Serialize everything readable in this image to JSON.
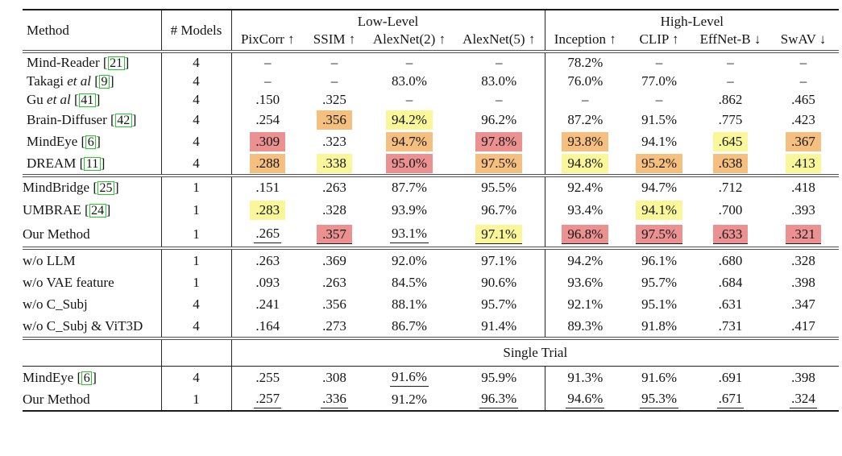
{
  "header": {
    "method": "Method",
    "models": "# Models",
    "groups": [
      {
        "label": "Low-Level",
        "cols": [
          "PixCorr ↑",
          "SSIM ↑",
          "AlexNet(2) ↑",
          "AlexNet(5) ↑"
        ]
      },
      {
        "label": "High-Level",
        "cols": [
          "Inception ↑",
          "CLIP ↑",
          "EffNet-B ↓",
          "SwAV ↓"
        ]
      }
    ]
  },
  "colors": {
    "highlight_yellow": "#FAF79B",
    "highlight_orange": "#F5C07F",
    "highlight_red": "#EC9191",
    "citation_green": "#1FD11F"
  },
  "sections": [
    {
      "name": "multi-model-baselines",
      "rows": [
        {
          "method": "Mind-Reader",
          "cite": "21",
          "models": "4",
          "cells": [
            {
              "v": "–"
            },
            {
              "v": "–"
            },
            {
              "v": "–"
            },
            {
              "v": "–"
            },
            {
              "v": "78.2%"
            },
            {
              "v": "–"
            },
            {
              "v": "–"
            },
            {
              "v": "–"
            }
          ]
        },
        {
          "method": "Takagi",
          "etal": true,
          "cite": "9",
          "models": "4",
          "cells": [
            {
              "v": "–"
            },
            {
              "v": "–"
            },
            {
              "v": "83.0%"
            },
            {
              "v": "83.0%"
            },
            {
              "v": "76.0%"
            },
            {
              "v": "77.0%"
            },
            {
              "v": "–"
            },
            {
              "v": "–"
            }
          ]
        },
        {
          "method": "Gu",
          "etal": true,
          "cite": "41",
          "models": "4",
          "cells": [
            {
              "v": ".150"
            },
            {
              "v": ".325"
            },
            {
              "v": "–"
            },
            {
              "v": "–"
            },
            {
              "v": "–"
            },
            {
              "v": "–"
            },
            {
              "v": ".862"
            },
            {
              "v": ".465"
            }
          ]
        },
        {
          "method": "Brain-Diffuser",
          "cite": "42",
          "models": "4",
          "cells": [
            {
              "v": ".254"
            },
            {
              "v": ".356",
              "bg": "orange"
            },
            {
              "v": "94.2%",
              "bg": "yellow"
            },
            {
              "v": "96.2%"
            },
            {
              "v": "87.2%"
            },
            {
              "v": "91.5%"
            },
            {
              "v": ".775"
            },
            {
              "v": ".423"
            }
          ]
        },
        {
          "method": "MindEye",
          "cite": "6",
          "models": "4",
          "cells": [
            {
              "v": ".309",
              "bg": "red"
            },
            {
              "v": ".323"
            },
            {
              "v": "94.7%",
              "bg": "orange"
            },
            {
              "v": "97.8%",
              "bg": "red"
            },
            {
              "v": "93.8%",
              "bg": "orange"
            },
            {
              "v": "94.1%"
            },
            {
              "v": ".645",
              "bg": "yellow"
            },
            {
              "v": ".367",
              "bg": "orange"
            }
          ]
        },
        {
          "method": "DREAM",
          "cite": "11",
          "models": "4",
          "cells": [
            {
              "v": ".288",
              "bg": "orange"
            },
            {
              "v": ".338",
              "bg": "yellow"
            },
            {
              "v": "95.0%",
              "bg": "red"
            },
            {
              "v": "97.5%",
              "bg": "orange"
            },
            {
              "v": "94.8%",
              "bg": "yellow"
            },
            {
              "v": "95.2%",
              "bg": "orange"
            },
            {
              "v": ".638",
              "bg": "orange"
            },
            {
              "v": ".413",
              "bg": "yellow"
            }
          ]
        }
      ]
    },
    {
      "name": "single-model-methods",
      "rows": [
        {
          "method": "MindBridge",
          "cite": "25",
          "models": "1",
          "cells": [
            {
              "v": ".151"
            },
            {
              "v": ".263"
            },
            {
              "v": "87.7%"
            },
            {
              "v": "95.5%"
            },
            {
              "v": "92.4%"
            },
            {
              "v": "94.7%"
            },
            {
              "v": ".712"
            },
            {
              "v": ".418"
            }
          ]
        },
        {
          "method": "UMBRAE",
          "cite": "24",
          "models": "1",
          "cells": [
            {
              "v": ".283",
              "bg": "yellow"
            },
            {
              "v": ".328"
            },
            {
              "v": "93.9%"
            },
            {
              "v": "96.7%"
            },
            {
              "v": "93.4%"
            },
            {
              "v": "94.1%",
              "bg": "yellow"
            },
            {
              "v": ".700"
            },
            {
              "v": ".393"
            }
          ]
        },
        {
          "method": "Our Method",
          "models": "1",
          "cells": [
            {
              "v": ".265",
              "u": true
            },
            {
              "v": ".357",
              "bg": "red",
              "u": true
            },
            {
              "v": "93.1%",
              "u": true
            },
            {
              "v": "97.1%",
              "bg": "yellow",
              "u": true
            },
            {
              "v": "96.8%",
              "bg": "red",
              "u": true
            },
            {
              "v": "97.5%",
              "bg": "red",
              "u": true
            },
            {
              "v": ".633",
              "bg": "red",
              "u": true
            },
            {
              "v": ".321",
              "bg": "red",
              "u": true
            }
          ]
        }
      ]
    },
    {
      "name": "ablations",
      "rows": [
        {
          "method": "w/o LLM",
          "models": "1",
          "cells": [
            {
              "v": ".263"
            },
            {
              "v": ".369"
            },
            {
              "v": "92.0%"
            },
            {
              "v": "97.1%"
            },
            {
              "v": "94.2%"
            },
            {
              "v": "96.1%"
            },
            {
              "v": ".680"
            },
            {
              "v": ".328"
            }
          ]
        },
        {
          "method": "w/o VAE feature",
          "models": "1",
          "cells": [
            {
              "v": ".093"
            },
            {
              "v": ".263"
            },
            {
              "v": "84.5%"
            },
            {
              "v": "90.6%"
            },
            {
              "v": "93.6%"
            },
            {
              "v": "95.7%"
            },
            {
              "v": ".684"
            },
            {
              "v": ".398"
            }
          ]
        },
        {
          "method": "w/o C_Subj",
          "models": "4",
          "cells": [
            {
              "v": ".241"
            },
            {
              "v": ".356"
            },
            {
              "v": "88.1%"
            },
            {
              "v": "95.7%"
            },
            {
              "v": "92.1%"
            },
            {
              "v": "95.1%"
            },
            {
              "v": ".631"
            },
            {
              "v": ".347"
            }
          ]
        },
        {
          "method": "w/o C_Subj & ViT3D",
          "models": "4",
          "cells": [
            {
              "v": ".164"
            },
            {
              "v": ".273"
            },
            {
              "v": "86.7%"
            },
            {
              "v": "91.4%"
            },
            {
              "v": "89.3%"
            },
            {
              "v": "91.8%"
            },
            {
              "v": ".731"
            },
            {
              "v": ".417"
            }
          ]
        }
      ]
    },
    {
      "name": "single-trial",
      "banner": "Single Trial",
      "rows": [
        {
          "method": "MindEye",
          "cite": "6",
          "models": "4",
          "cells": [
            {
              "v": ".255"
            },
            {
              "v": ".308"
            },
            {
              "v": "91.6%",
              "u": true
            },
            {
              "v": "95.9%"
            },
            {
              "v": "91.3%"
            },
            {
              "v": "91.6%"
            },
            {
              "v": ".691"
            },
            {
              "v": ".398"
            }
          ]
        },
        {
          "method": "Our Method",
          "models": "1",
          "cells": [
            {
              "v": ".257",
              "u": true
            },
            {
              "v": ".336",
              "u": true
            },
            {
              "v": "91.2%"
            },
            {
              "v": "96.3%",
              "u": true
            },
            {
              "v": "94.6%",
              "u": true
            },
            {
              "v": "95.3%",
              "u": true
            },
            {
              "v": ".671",
              "u": true
            },
            {
              "v": ".324",
              "u": true
            }
          ]
        }
      ]
    }
  ]
}
